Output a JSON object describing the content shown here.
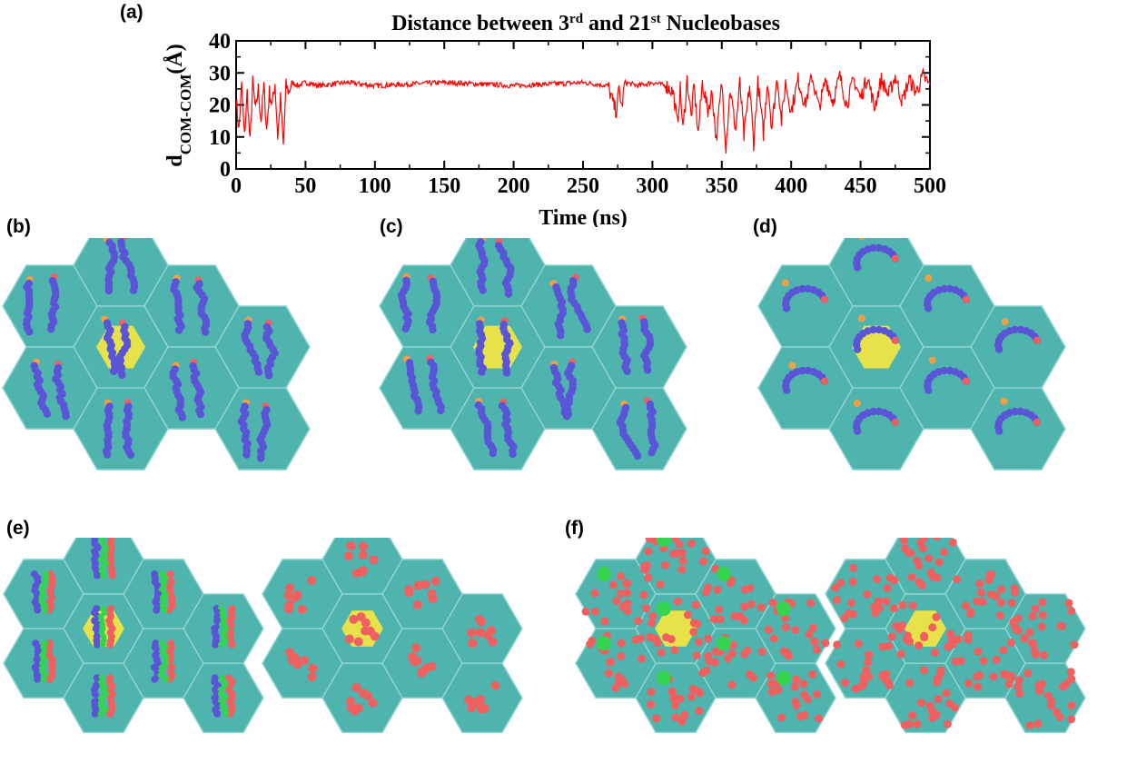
{
  "panels": {
    "a": "(a)",
    "b": "(b)",
    "c": "(c)",
    "d": "(d)",
    "e": "(e)",
    "f": "(f)"
  },
  "chart_data": {
    "type": "line",
    "title_main": "Distance between 3",
    "title_sup1": "rd",
    "title_mid": " and 21",
    "title_sup2": "st",
    "title_end": " Nucleobases",
    "xlabel": "Time (ns)",
    "ylabel_main": "d",
    "ylabel_sub": "COM-COM",
    "ylabel_unit": "(Å)",
    "xlim": [
      0,
      500
    ],
    "ylim": [
      0,
      40
    ],
    "xticks": [
      0,
      50,
      100,
      150,
      200,
      250,
      300,
      350,
      400,
      450,
      500
    ],
    "yticks": [
      0,
      10,
      20,
      30,
      40
    ],
    "series": [
      {
        "color": "#ff0000",
        "x": [
          0,
          2,
          4,
          6,
          8,
          10,
          12,
          14,
          16,
          18,
          20,
          22,
          24,
          26,
          28,
          30,
          32,
          34,
          36,
          38,
          40,
          45,
          50,
          60,
          80,
          100,
          150,
          200,
          250,
          268,
          272,
          274,
          276,
          278,
          280,
          290,
          300,
          310,
          315,
          318,
          320,
          322,
          325,
          328,
          330,
          333,
          336,
          340,
          343,
          346,
          350,
          353,
          356,
          360,
          363,
          366,
          370,
          373,
          376,
          380,
          383,
          386,
          390,
          393,
          396,
          400,
          405,
          410,
          415,
          420,
          425,
          430,
          435,
          440,
          445,
          450,
          455,
          460,
          465,
          470,
          475,
          480,
          485,
          490,
          495,
          500
        ],
        "y": [
          22,
          12,
          26,
          10,
          24,
          8,
          27,
          18,
          25,
          15,
          26,
          12,
          24,
          20,
          27,
          10,
          22,
          7,
          26,
          24,
          27,
          26,
          27,
          26,
          27,
          26,
          27,
          26,
          27,
          26,
          20,
          18,
          25,
          19,
          27,
          26,
          27,
          26,
          24,
          14,
          25,
          12,
          28,
          16,
          26,
          11,
          27,
          18,
          24,
          9,
          27,
          7,
          25,
          12,
          27,
          10,
          26,
          8,
          27,
          11,
          28,
          13,
          29,
          15,
          27,
          18,
          28,
          20,
          29,
          19,
          28,
          21,
          29,
          20,
          28,
          22,
          29,
          19,
          28,
          23,
          29,
          21,
          28,
          24,
          29,
          26
        ]
      }
    ]
  },
  "colors": {
    "substrate": "#4fb3ae",
    "substrate_edge": "#8fd3cf",
    "gold": "#e8e24a",
    "nucleo": "#5a55d6",
    "red": "#f06060",
    "orange": "#f0a040",
    "green": "#33d44f"
  }
}
